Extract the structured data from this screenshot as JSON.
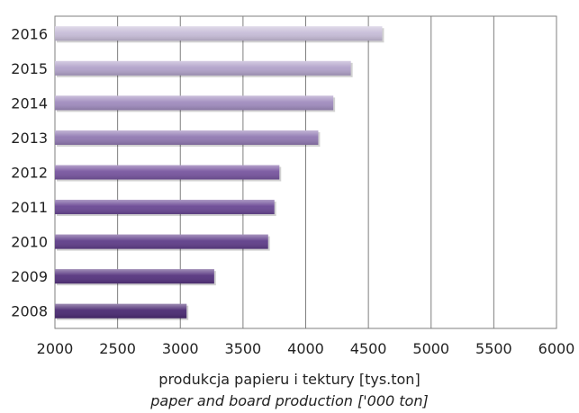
{
  "chart_data": {
    "type": "bar",
    "orientation": "horizontal",
    "categories": [
      "2008",
      "2009",
      "2010",
      "2011",
      "2012",
      "2013",
      "2014",
      "2015",
      "2016"
    ],
    "values": [
      3050,
      3270,
      3700,
      3750,
      3790,
      4100,
      4220,
      4360,
      4610
    ],
    "xlim": [
      2000,
      6000
    ],
    "xticks": [
      "2000",
      "2500",
      "3000",
      "3500",
      "4000",
      "4500",
      "5000",
      "5500",
      "6000"
    ],
    "xlabel": [
      "produkcja papieru i tektury [tys.ton]",
      "paper and board production ['000 ton]"
    ],
    "grid": true,
    "legend": "none",
    "colors": [
      "#4a2a72",
      "#55337e",
      "#5f3d89",
      "#6a4894",
      "#77559f",
      "#9179b2",
      "#a08cbe",
      "#b2a3ca",
      "#c7bdd8"
    ]
  }
}
